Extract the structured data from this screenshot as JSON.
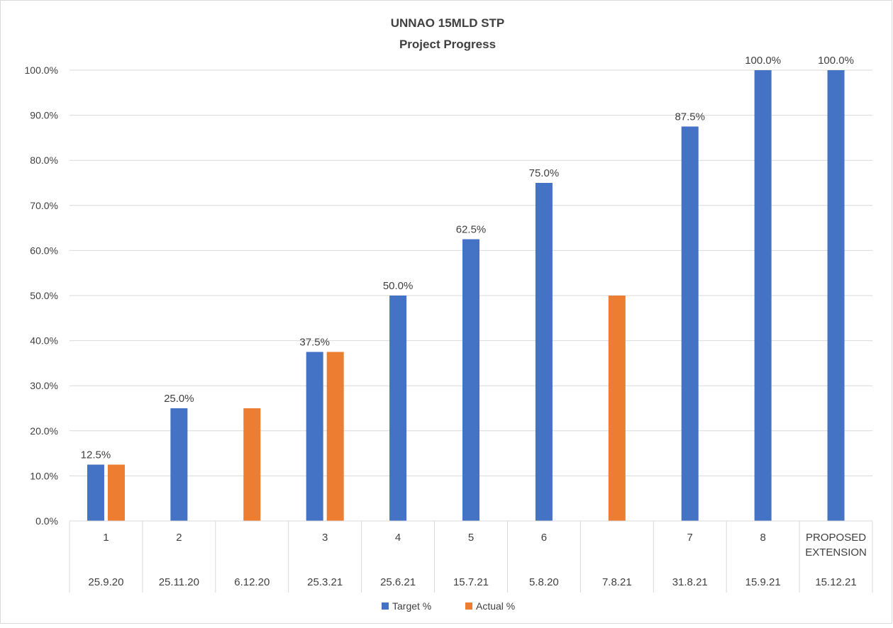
{
  "chart_data": {
    "type": "bar",
    "title": "UNNAO 15MLD STP",
    "subtitle": "Project Progress",
    "xlabel": "",
    "ylabel": "",
    "ylim": [
      0,
      100
    ],
    "yticks": [
      "0.0%",
      "10.0%",
      "20.0%",
      "30.0%",
      "40.0%",
      "50.0%",
      "60.0%",
      "70.0%",
      "80.0%",
      "90.0%",
      "100.0%"
    ],
    "categories": [
      {
        "level1": "1",
        "level2": "25.9.20"
      },
      {
        "level1": "2",
        "level2": "25.11.20"
      },
      {
        "level1": "",
        "level2": "6.12.20"
      },
      {
        "level1": "3",
        "level2": "25.3.21"
      },
      {
        "level1": "4",
        "level2": "25.6.21"
      },
      {
        "level1": "5",
        "level2": "15.7.21"
      },
      {
        "level1": "6",
        "level2": "5.8.20"
      },
      {
        "level1": "",
        "level2": "7.8.21"
      },
      {
        "level1": "7",
        "level2": "31.8.21"
      },
      {
        "level1": "8",
        "level2": "15.9.21"
      },
      {
        "level1": "PROPOSED EXTENSION",
        "level2": "15.12.21"
      }
    ],
    "series": [
      {
        "name": "Target %",
        "color": "#4472C4",
        "values": [
          12.5,
          25.0,
          null,
          37.5,
          50.0,
          62.5,
          75.0,
          null,
          87.5,
          100.0,
          100.0
        ],
        "data_labels": [
          "12.5%",
          "25.0%",
          null,
          "37.5%",
          "50.0%",
          "62.5%",
          "75.0%",
          null,
          "87.5%",
          "100.0%",
          "100.0%"
        ]
      },
      {
        "name": "Actual %",
        "color": "#ED7D31",
        "values": [
          12.5,
          null,
          25.0,
          37.5,
          null,
          null,
          null,
          50.0,
          null,
          null,
          null
        ],
        "data_labels": [
          null,
          null,
          null,
          null,
          null,
          null,
          null,
          null,
          null,
          null,
          null
        ]
      }
    ],
    "grid": true,
    "legend_position": "bottom"
  }
}
